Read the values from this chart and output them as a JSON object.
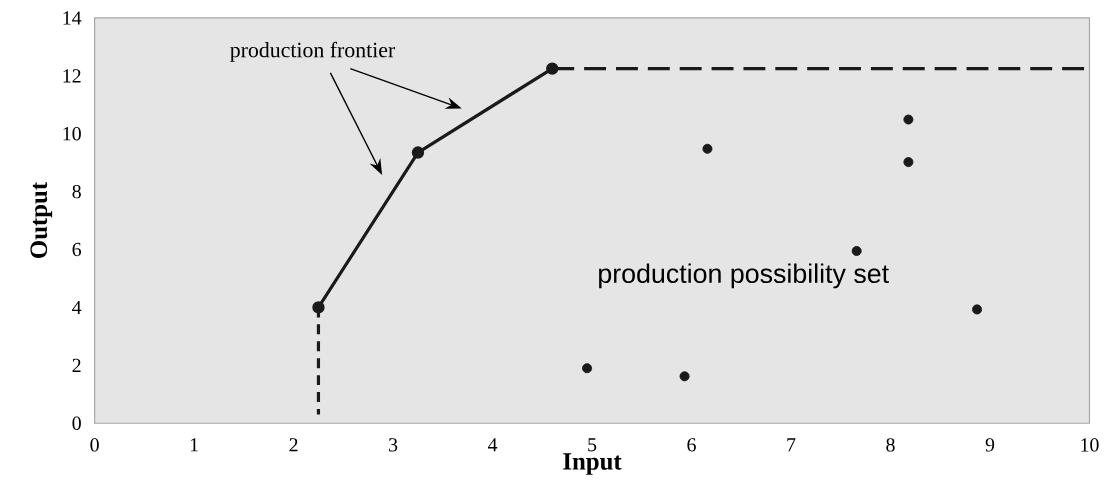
{
  "chart_data": {
    "type": "line",
    "xlabel": "Input",
    "ylabel": "Output",
    "xlim": [
      0,
      10
    ],
    "ylim": [
      0,
      14
    ],
    "xticks": [
      0,
      1,
      2,
      3,
      4,
      5,
      6,
      7,
      8,
      9,
      10
    ],
    "yticks": [
      0,
      2,
      4,
      6,
      8,
      10,
      12,
      14
    ],
    "series": [
      {
        "color": "#1a1a1a",
        "x": [
          2.25,
          3.25,
          4.6
        ],
        "values": [
          4,
          9.35,
          12.25
        ],
        "marker": "circle",
        "line_style": "solid"
      },
      {
        "color": "#1a1a1a",
        "x": [
          4.6,
          10
        ],
        "values": [
          12.25,
          12.25
        ],
        "marker": "none",
        "line_style": "dashed"
      },
      {
        "color": "#1a1a1a",
        "x": [
          2.25,
          2.25
        ],
        "values": [
          4,
          0.3
        ],
        "marker": "none",
        "line_style": "dashed"
      },
      {
        "type": "scatter",
        "color": "#1a1a1a",
        "x": [
          4.95,
          5.93,
          6.16,
          8.18,
          8.18,
          7.66,
          8.87
        ],
        "values": [
          1.9,
          1.62,
          9.48,
          10.49,
          9.02,
          5.95,
          3.93
        ],
        "marker": "circle"
      }
    ],
    "annotations": [
      "production frontier",
      "production possibility set"
    ]
  }
}
